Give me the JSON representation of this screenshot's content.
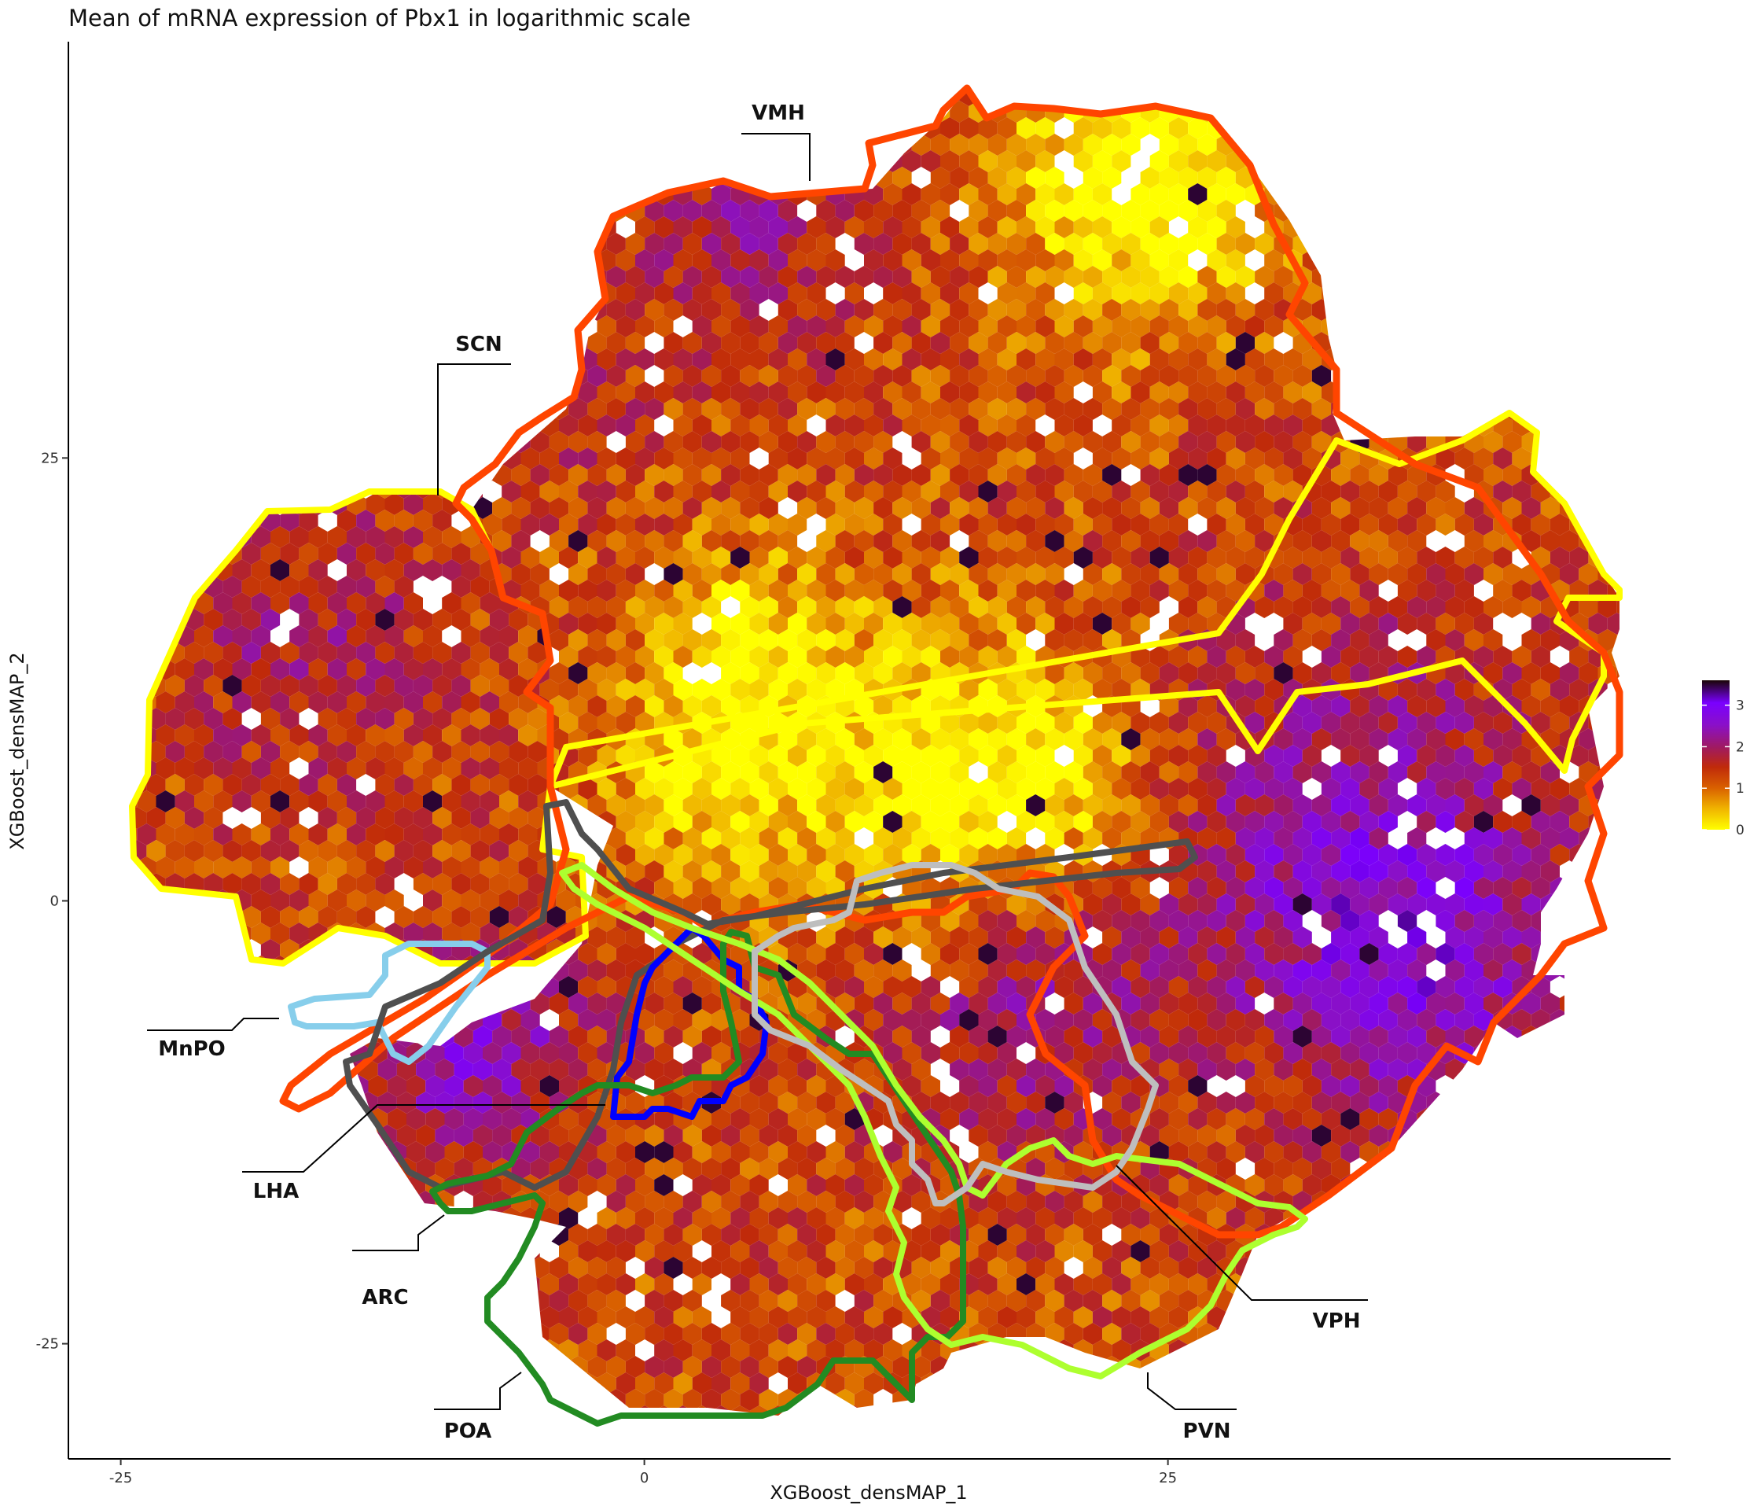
{
  "chart_data": {
    "type": "heatmap",
    "subtype": "hexbin",
    "title": "Mean of mRNA expression of Pbx1 in logarithmic scale",
    "xlabel": "XGBoost_densMAP_1",
    "ylabel": "XGBoost_densMAP_2",
    "xlim": [
      -27.5,
      49
    ],
    "ylim": [
      -31.5,
      48.5
    ],
    "x_ticks": [
      {
        "value": -25,
        "label": "-25"
      },
      {
        "value": 0,
        "label": "0"
      },
      {
        "value": 25,
        "label": "25"
      }
    ],
    "y_ticks": [
      {
        "value": 25,
        "label": "25"
      },
      {
        "value": 0,
        "label": "0"
      },
      {
        "value": -25,
        "label": "-25"
      }
    ],
    "grid": false,
    "legend": {
      "position": "right",
      "type": "colorbar",
      "range": [
        0,
        3.6
      ],
      "ticks": [
        {
          "value": 0,
          "label": "0"
        },
        {
          "value": 1,
          "label": "1"
        },
        {
          "value": 2,
          "label": "2"
        },
        {
          "value": 3,
          "label": "3"
        }
      ],
      "colors": [
        {
          "stop": 0.0,
          "color": "#ffff00"
        },
        {
          "stop": 0.14,
          "color": "#f0b400"
        },
        {
          "stop": 0.28,
          "color": "#d96000"
        },
        {
          "stop": 0.42,
          "color": "#c02a0a"
        },
        {
          "stop": 0.55,
          "color": "#a01a60"
        },
        {
          "stop": 0.7,
          "color": "#8a10c8"
        },
        {
          "stop": 0.85,
          "color": "#7a00ff"
        },
        {
          "stop": 1.0,
          "color": "#1a0505"
        }
      ]
    },
    "regions": [
      {
        "name": "VMH",
        "color": "#ff4500",
        "label": "VMH"
      },
      {
        "name": "SCN",
        "color": "#ffff00",
        "label": "SCN"
      },
      {
        "name": "MnPO",
        "color": "#87ceeb",
        "label": "MnPO"
      },
      {
        "name": "LHA",
        "color": "#4f4f4f",
        "label": "LHA"
      },
      {
        "name": "ARC",
        "color": "#0000ff",
        "label": "ARC"
      },
      {
        "name": "POA",
        "color": "#228b22",
        "label": "POA"
      },
      {
        "name": "PVN",
        "color": "#adff2f",
        "label": "PVN"
      },
      {
        "name": "VPH",
        "color": "#bebebe",
        "label": "VPH"
      }
    ]
  }
}
